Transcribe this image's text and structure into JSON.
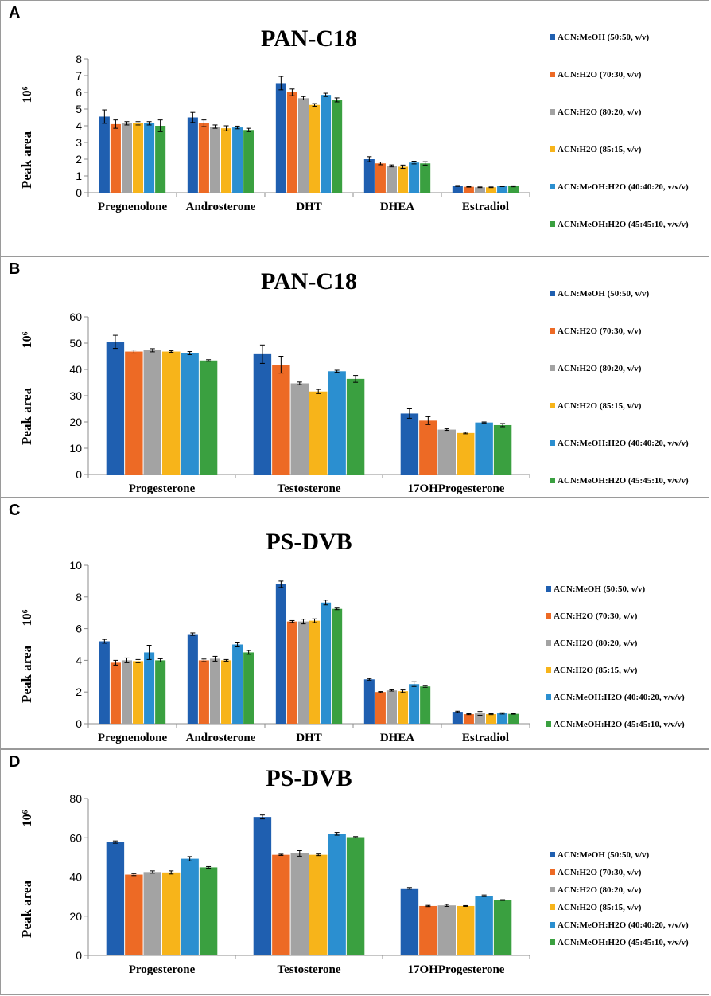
{
  "colors": {
    "series": [
      "#1f5fb0",
      "#ed6a25",
      "#a3a3a3",
      "#f7b41a",
      "#2b8fd0",
      "#3aa040"
    ],
    "axis": "#8c8c8c",
    "grid": "none",
    "errorbar": "#000000"
  },
  "chart_data": [
    {
      "panel": "A",
      "type": "bar",
      "title": "PAN-C18",
      "ylabel": "Peak area",
      "yunit": "10⁶",
      "xlabel": "",
      "ylim": [
        0,
        8
      ],
      "yticks": [
        "0",
        "1",
        "2",
        "3",
        "4",
        "5",
        "6",
        "7",
        "8"
      ],
      "grid": false,
      "legend_position": "right",
      "categories": [
        "Pregnenolone",
        "Androsterone",
        "DHT",
        "DHEA",
        "Estradiol"
      ],
      "series": [
        {
          "name": "ACN:MeOH (50:50, v/v)",
          "values": [
            4.55,
            4.5,
            6.55,
            2.0,
            0.4
          ],
          "errors": [
            0.4,
            0.3,
            0.4,
            0.15,
            0.03
          ]
        },
        {
          "name": "ACN:H2O (70:30, v/v)",
          "values": [
            4.1,
            4.15,
            6.0,
            1.75,
            0.35
          ],
          "errors": [
            0.25,
            0.2,
            0.2,
            0.08,
            0.02
          ]
        },
        {
          "name": "ACN:H2O (80:20, v/v)",
          "values": [
            4.15,
            3.95,
            5.65,
            1.6,
            0.32
          ],
          "errors": [
            0.1,
            0.1,
            0.1,
            0.06,
            0.02
          ]
        },
        {
          "name": "ACN:H2O (85:15, v/v)",
          "values": [
            4.15,
            3.85,
            5.25,
            1.55,
            0.32
          ],
          "errors": [
            0.1,
            0.15,
            0.08,
            0.1,
            0.02
          ]
        },
        {
          "name": "ACN:MeOH:H2O (40:40:20, v/v/v)",
          "values": [
            4.15,
            3.9,
            5.85,
            1.8,
            0.38
          ],
          "errors": [
            0.1,
            0.08,
            0.1,
            0.08,
            0.02
          ]
        },
        {
          "name": "ACN:MeOH:H2O (45:45:10, v/v/v)",
          "values": [
            4.0,
            3.75,
            5.55,
            1.75,
            0.38
          ],
          "errors": [
            0.35,
            0.1,
            0.12,
            0.1,
            0.03
          ]
        }
      ]
    },
    {
      "panel": "B",
      "type": "bar",
      "title": "PAN-C18",
      "ylabel": "Peak area",
      "yunit": "10⁶",
      "xlabel": "",
      "ylim": [
        0,
        60
      ],
      "yticks": [
        "0",
        "10",
        "20",
        "30",
        "40",
        "50",
        "60"
      ],
      "grid": false,
      "legend_position": "right",
      "categories": [
        "Progesterone",
        "Testosterone",
        "17OHProgesterone"
      ],
      "series": [
        {
          "name": "ACN:MeOH (50:50, v/v)",
          "values": [
            50.5,
            45.8,
            23.2
          ],
          "errors": [
            2.5,
            3.5,
            1.8
          ]
        },
        {
          "name": "ACN:H2O (70:30, v/v)",
          "values": [
            46.8,
            41.8,
            20.5
          ],
          "errors": [
            0.6,
            3.2,
            1.5
          ]
        },
        {
          "name": "ACN:H2O (80:20, v/v)",
          "values": [
            47.3,
            34.7,
            17.1
          ],
          "errors": [
            0.6,
            0.5,
            0.3
          ]
        },
        {
          "name": "ACN:H2O (85:15, v/v)",
          "values": [
            46.8,
            31.6,
            15.8
          ],
          "errors": [
            0.3,
            0.8,
            0.3
          ]
        },
        {
          "name": "ACN:MeOH:H2O (40:40:20, v/v/v)",
          "values": [
            46.2,
            39.3,
            19.8
          ],
          "errors": [
            0.6,
            0.4,
            0.2
          ]
        },
        {
          "name": "ACN:MeOH:H2O (45:45:10, v/v/v)",
          "values": [
            43.4,
            36.4,
            18.8
          ],
          "errors": [
            0.3,
            1.3,
            0.6
          ]
        }
      ]
    },
    {
      "panel": "C",
      "type": "bar",
      "title": "PS-DVB",
      "ylabel": "Peak area",
      "yunit": "10⁶",
      "xlabel": "",
      "ylim": [
        0,
        10
      ],
      "yticks": [
        "0",
        "2",
        "4",
        "6",
        "8",
        "10"
      ],
      "grid": false,
      "legend_position": "right",
      "categories": [
        "Pregnenolone",
        "Androsterone",
        "DHT",
        "DHEA",
        "Estradiol"
      ],
      "series": [
        {
          "name": "ACN:MeOH (50:50, v/v)",
          "values": [
            5.2,
            5.65,
            8.8,
            2.8,
            0.75
          ],
          "errors": [
            0.12,
            0.08,
            0.2,
            0.05,
            0.04
          ]
        },
        {
          "name": "ACN:H2O (70:30, v/v)",
          "values": [
            3.85,
            4.0,
            6.45,
            2.0,
            0.6
          ],
          "errors": [
            0.15,
            0.08,
            0.06,
            0.03,
            0.03
          ]
        },
        {
          "name": "ACN:H2O (80:20, v/v)",
          "values": [
            4.0,
            4.1,
            6.45,
            2.1,
            0.65
          ],
          "errors": [
            0.15,
            0.15,
            0.15,
            0.04,
            0.12
          ]
        },
        {
          "name": "ACN:H2O (85:15, v/v)",
          "values": [
            3.95,
            4.0,
            6.5,
            2.05,
            0.6
          ],
          "errors": [
            0.1,
            0.05,
            0.12,
            0.08,
            0.03
          ]
        },
        {
          "name": "ACN:MeOH:H2O (40:40:20, v/v/v)",
          "values": [
            4.5,
            5.0,
            7.65,
            2.5,
            0.65
          ],
          "errors": [
            0.45,
            0.15,
            0.15,
            0.15,
            0.04
          ]
        },
        {
          "name": "ACN:MeOH:H2O (45:45:10, v/v/v)",
          "values": [
            4.0,
            4.5,
            7.25,
            2.35,
            0.62
          ],
          "errors": [
            0.1,
            0.12,
            0.05,
            0.05,
            0.02
          ]
        }
      ]
    },
    {
      "panel": "D",
      "type": "bar",
      "title": "PS-DVB",
      "ylabel": "Peak area",
      "yunit": "10⁶",
      "xlabel": "",
      "ylim": [
        0,
        80
      ],
      "yticks": [
        "0",
        "20",
        "40",
        "60",
        "80"
      ],
      "grid": false,
      "legend_position": "right",
      "categories": [
        "Progesterone",
        "Testosterone",
        "17OHProgesterone"
      ],
      "series": [
        {
          "name": "ACN:MeOH (50:50, v/v)",
          "values": [
            57.8,
            70.6,
            34.2
          ],
          "errors": [
            0.6,
            1.0,
            0.4
          ]
        },
        {
          "name": "ACN:H2O (70:30, v/v)",
          "values": [
            41.2,
            51.3,
            25.2
          ],
          "errors": [
            0.5,
            0.3,
            0.3
          ]
        },
        {
          "name": "ACN:H2O (80:20, v/v)",
          "values": [
            42.5,
            52.0,
            25.5
          ],
          "errors": [
            0.6,
            1.4,
            0.5
          ]
        },
        {
          "name": "ACN:H2O (85:15, v/v)",
          "values": [
            42.3,
            51.3,
            25.2
          ],
          "errors": [
            0.8,
            0.4,
            0.2
          ]
        },
        {
          "name": "ACN:MeOH:H2O (40:40:20, v/v/v)",
          "values": [
            49.3,
            62.0,
            30.4
          ],
          "errors": [
            1.1,
            0.7,
            0.4
          ]
        },
        {
          "name": "ACN:MeOH:H2O (45:45:10, v/v/v)",
          "values": [
            44.9,
            60.3,
            28.2
          ],
          "errors": [
            0.4,
            0.3,
            0.2
          ]
        }
      ]
    }
  ]
}
